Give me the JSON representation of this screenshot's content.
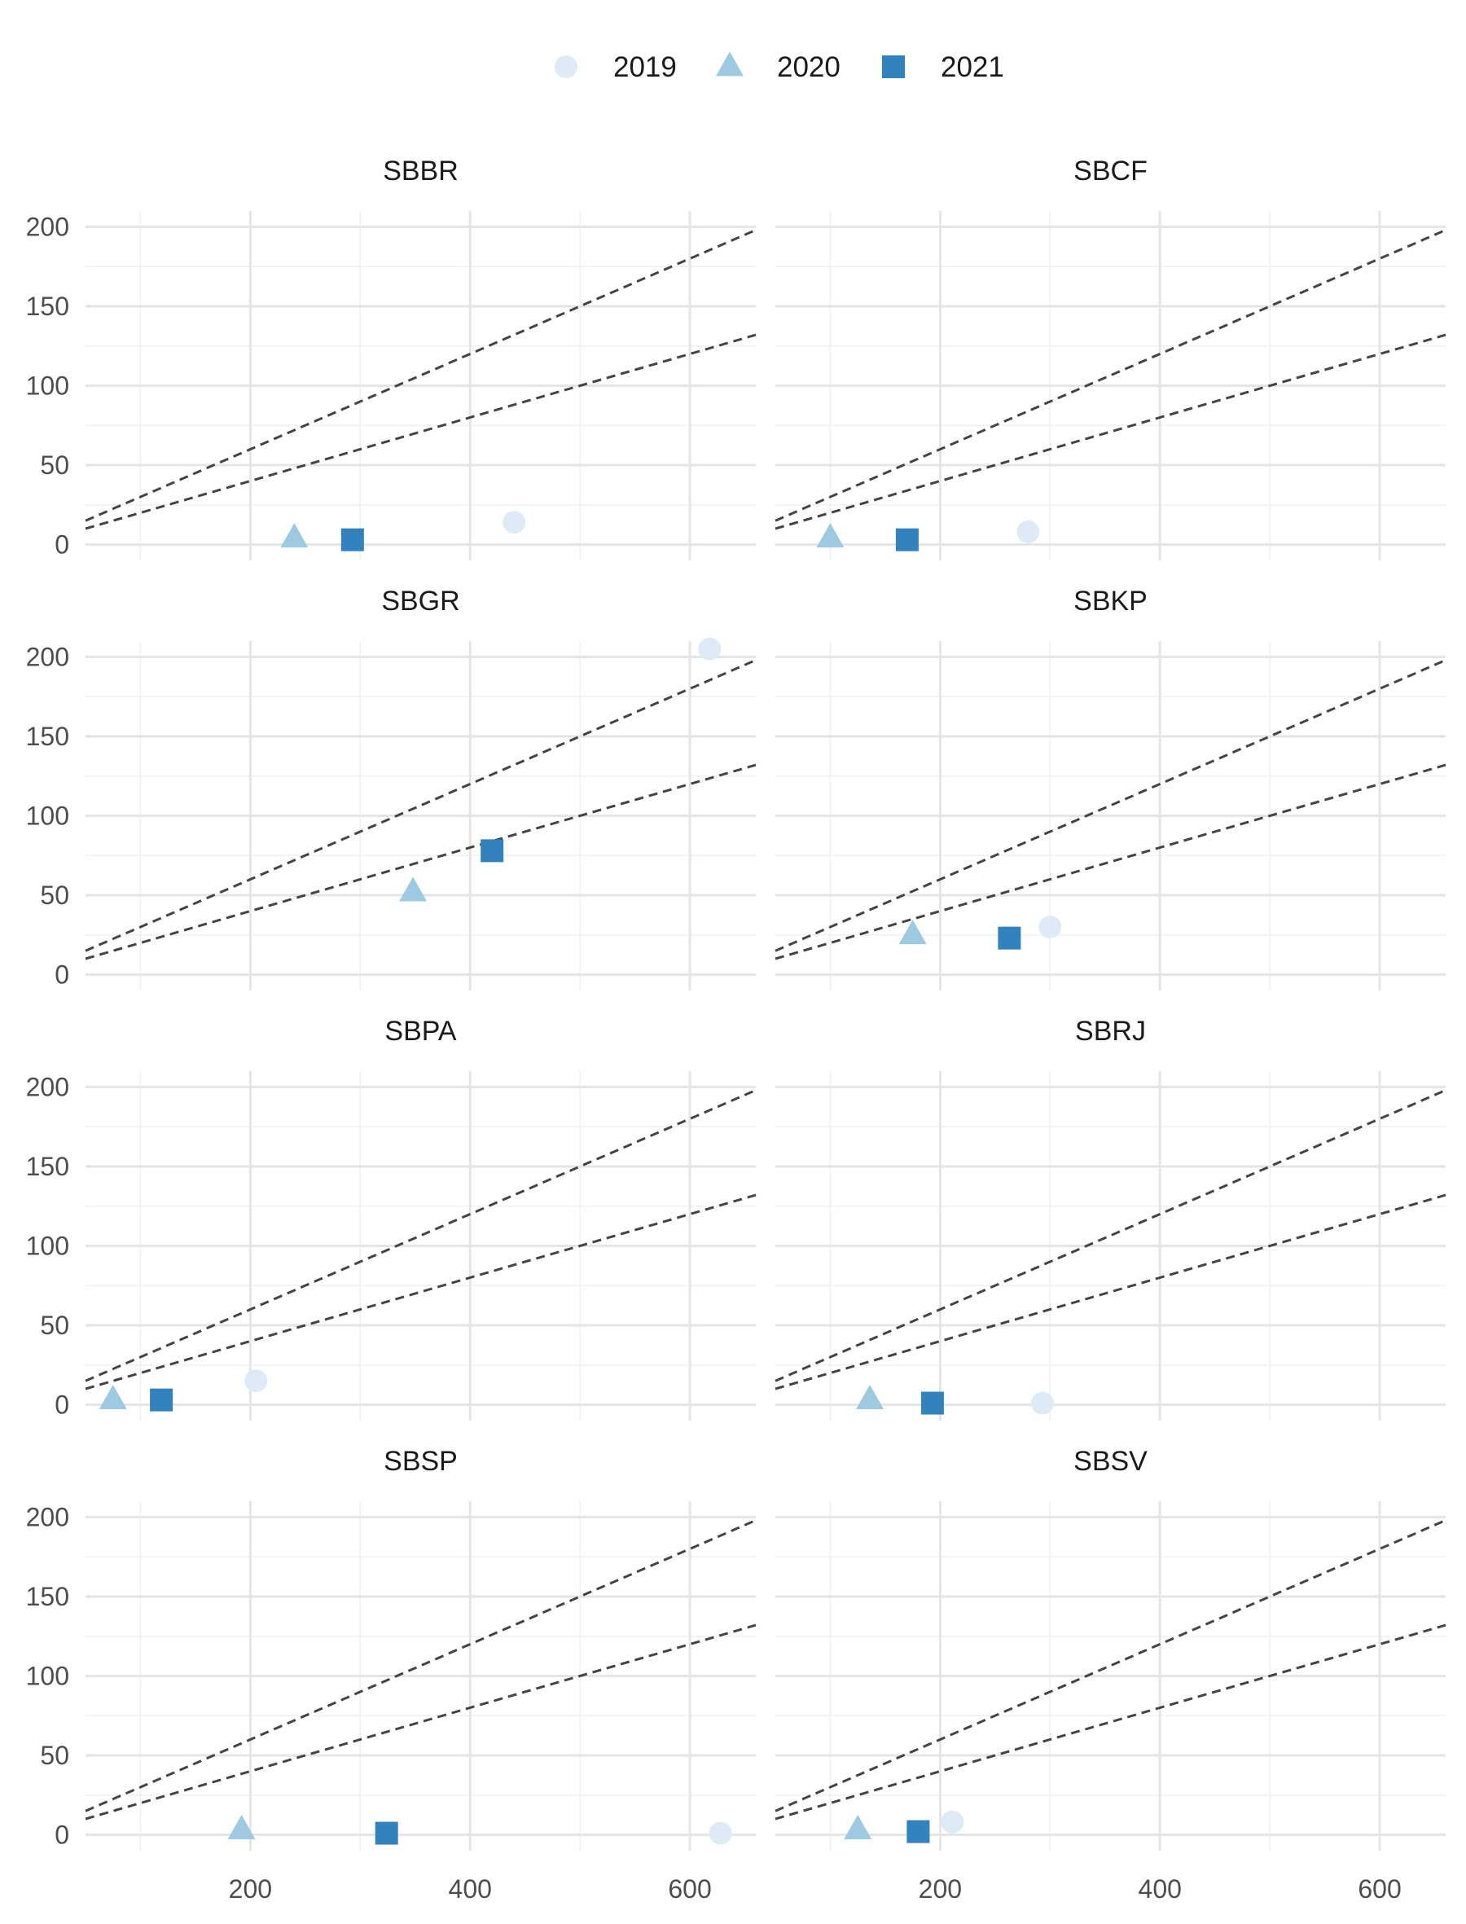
{
  "chart_data": {
    "type": "scatter",
    "legend": {
      "placement": "top",
      "entries": [
        {
          "label": "2019",
          "shape": "circle",
          "color": "#deebf7"
        },
        {
          "label": "2020",
          "shape": "triangle",
          "color": "#9ecae1"
        },
        {
          "label": "2021",
          "shape": "square",
          "color": "#3182bd"
        }
      ]
    },
    "reference_lines": [
      {
        "style": "dashed",
        "color": "#444444",
        "slope": 0.3,
        "intercept": 0
      },
      {
        "style": "dashed",
        "color": "#444444",
        "slope": 0.2,
        "intercept": 0
      }
    ],
    "xlim": [
      50,
      660
    ],
    "ylim": [
      -10,
      210
    ],
    "x_ticks": [
      200,
      400,
      600
    ],
    "y_ticks": [
      0,
      50,
      100,
      150,
      200
    ],
    "grid": true,
    "panels": [
      {
        "title": "SBBR",
        "points": [
          {
            "series": "2019",
            "x": 440,
            "y": 14
          },
          {
            "series": "2020",
            "x": 240,
            "y": 4
          },
          {
            "series": "2021",
            "x": 293,
            "y": 3
          }
        ]
      },
      {
        "title": "SBCF",
        "points": [
          {
            "series": "2019",
            "x": 280,
            "y": 8
          },
          {
            "series": "2020",
            "x": 100,
            "y": 4
          },
          {
            "series": "2021",
            "x": 170,
            "y": 3
          }
        ]
      },
      {
        "title": "SBGR",
        "points": [
          {
            "series": "2019",
            "x": 618,
            "y": 205
          },
          {
            "series": "2020",
            "x": 348,
            "y": 52
          },
          {
            "series": "2021",
            "x": 420,
            "y": 78
          }
        ]
      },
      {
        "title": "SBKP",
        "points": [
          {
            "series": "2019",
            "x": 300,
            "y": 30
          },
          {
            "series": "2020",
            "x": 175,
            "y": 25
          },
          {
            "series": "2021",
            "x": 263,
            "y": 23
          }
        ]
      },
      {
        "title": "SBPA",
        "points": [
          {
            "series": "2019",
            "x": 205,
            "y": 15
          },
          {
            "series": "2020",
            "x": 75,
            "y": 3
          },
          {
            "series": "2021",
            "x": 119,
            "y": 3
          }
        ]
      },
      {
        "title": "SBRJ",
        "points": [
          {
            "series": "2019",
            "x": 293,
            "y": 1
          },
          {
            "series": "2020",
            "x": 136,
            "y": 3
          },
          {
            "series": "2021",
            "x": 193,
            "y": 1
          }
        ]
      },
      {
        "title": "SBSP",
        "points": [
          {
            "series": "2019",
            "x": 628,
            "y": 1
          },
          {
            "series": "2020",
            "x": 192,
            "y": 3
          },
          {
            "series": "2021",
            "x": 324,
            "y": 1
          }
        ]
      },
      {
        "title": "SBSV",
        "points": [
          {
            "series": "2019",
            "x": 211,
            "y": 8
          },
          {
            "series": "2020",
            "x": 125,
            "y": 3
          },
          {
            "series": "2021",
            "x": 180,
            "y": 2
          }
        ]
      }
    ]
  }
}
